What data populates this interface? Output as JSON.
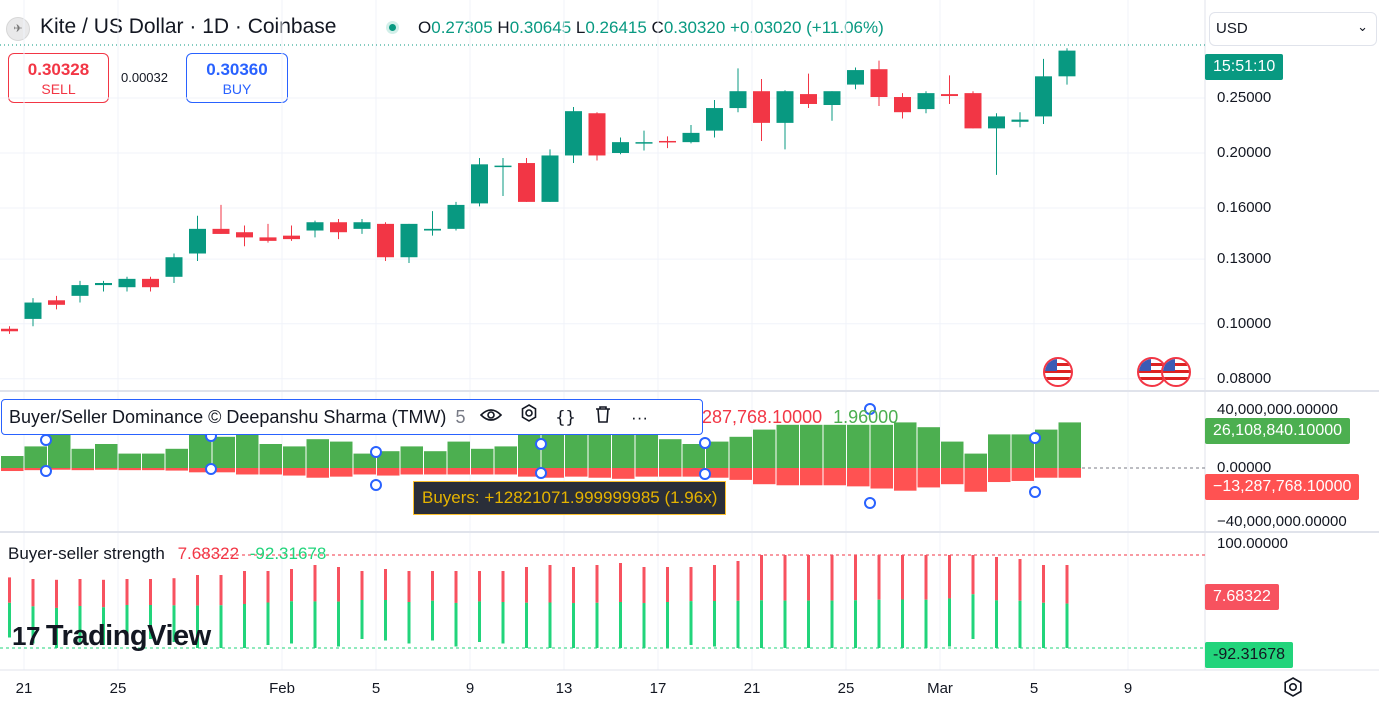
{
  "header": {
    "symbol_icon": "kite-logo-icon",
    "title": "Kite / US Dollar · 1D · Coinbase",
    "ohlc": {
      "o_label": "O",
      "o": "0.27305",
      "h_label": "H",
      "h": "0.30645",
      "l_label": "L",
      "l": "0.26415",
      "c_label": "C",
      "c": "0.30320",
      "change": "+0.03020 (+11.06%)"
    }
  },
  "trade": {
    "sell_price": "0.30328",
    "sell_label": "SELL",
    "spread": "0.00032",
    "buy_price": "0.30360",
    "buy_label": "BUY"
  },
  "currency_select": {
    "value": "USD"
  },
  "price_axis": {
    "labels": [
      "0.25000",
      "0.20000",
      "0.16000",
      "0.13000",
      "0.10000",
      "0.08000"
    ],
    "countdown": "15:51:10"
  },
  "dominance_indicator": {
    "name": "Buyer/Seller Dominance © Deepanshu Sharma (TMW)",
    "param": "5",
    "value_sell": "−13,287,768.10000",
    "value_sell_partial": "287,768.10000",
    "ratio": "1.96000",
    "axis": [
      "40,000,000.00000",
      "0.00000",
      "−40,000,000.00000"
    ],
    "tag_buy": "26,108,840.10000",
    "tag_sell": "−13,287,768.10000",
    "tooltip": "Buyers: +12821071.999999985 (1.96x)",
    "bars": [
      {
        "g": 0.25,
        "r": 0.14
      },
      {
        "g": 0.45,
        "r": 0.1
      },
      {
        "g": 0.7,
        "r": 0.08
      },
      {
        "g": 0.4,
        "r": 0.1
      },
      {
        "g": 0.5,
        "r": 0.08
      },
      {
        "g": 0.3,
        "r": 0.1
      },
      {
        "g": 0.3,
        "r": 0.1
      },
      {
        "g": 0.4,
        "r": 0.12
      },
      {
        "g": 0.7,
        "r": 0.2
      },
      {
        "g": 0.65,
        "r": 0.2
      },
      {
        "g": 0.7,
        "r": 0.3
      },
      {
        "g": 0.5,
        "r": 0.3
      },
      {
        "g": 0.45,
        "r": 0.35
      },
      {
        "g": 0.6,
        "r": 0.45
      },
      {
        "g": 0.55,
        "r": 0.4
      },
      {
        "g": 0.3,
        "r": 0.3
      },
      {
        "g": 0.35,
        "r": 0.35
      },
      {
        "g": 0.45,
        "r": 0.3
      },
      {
        "g": 0.35,
        "r": 0.3
      },
      {
        "g": 0.55,
        "r": 0.3
      },
      {
        "g": 0.4,
        "r": 0.3
      },
      {
        "g": 0.45,
        "r": 0.3
      },
      {
        "g": 0.7,
        "r": 0.4
      },
      {
        "g": 0.75,
        "r": 0.45
      },
      {
        "g": 0.75,
        "r": 0.4
      },
      {
        "g": 0.8,
        "r": 0.45
      },
      {
        "g": 0.75,
        "r": 0.5
      },
      {
        "g": 0.75,
        "r": 0.4
      },
      {
        "g": 0.6,
        "r": 0.4
      },
      {
        "g": 0.5,
        "r": 0.4
      },
      {
        "g": 0.55,
        "r": 0.45
      },
      {
        "g": 0.65,
        "r": 0.55
      },
      {
        "g": 0.8,
        "r": 0.75
      },
      {
        "g": 0.9,
        "r": 0.8
      },
      {
        "g": 0.9,
        "r": 0.8
      },
      {
        "g": 0.9,
        "r": 0.8
      },
      {
        "g": 0.9,
        "r": 0.85
      },
      {
        "g": 0.9,
        "r": 0.95
      },
      {
        "g": 0.95,
        "r": 1.05
      },
      {
        "g": 0.85,
        "r": 0.9
      },
      {
        "g": 0.55,
        "r": 0.75
      },
      {
        "g": 0.3,
        "r": 1.1
      },
      {
        "g": 0.7,
        "r": 0.65
      },
      {
        "g": 0.7,
        "r": 0.6
      },
      {
        "g": 0.8,
        "r": 0.45
      },
      {
        "g": 0.95,
        "r": 0.45
      }
    ]
  },
  "strength_indicator": {
    "name": "Buyer-seller strength",
    "value_pos": "7.68322",
    "value_neg": "-92.31678",
    "axis_top": "100.00000",
    "tag_pos": "7.68322",
    "tag_neg": "-92.31678"
  },
  "time_axis": {
    "labels": [
      {
        "t": "21",
        "x": 24
      },
      {
        "t": "25",
        "x": 118
      },
      {
        "t": "Feb",
        "x": 282
      },
      {
        "t": "5",
        "x": 376
      },
      {
        "t": "9",
        "x": 470
      },
      {
        "t": "13",
        "x": 564
      },
      {
        "t": "17",
        "x": 658
      },
      {
        "t": "21",
        "x": 752
      },
      {
        "t": "25",
        "x": 846
      },
      {
        "t": "Mar",
        "x": 940
      },
      {
        "t": "5",
        "x": 1034
      },
      {
        "t": "9",
        "x": 1128
      }
    ]
  },
  "branding": {
    "logo_text": "TradingView",
    "logo_mark": "17"
  },
  "colors": {
    "up": "#089981",
    "down": "#f23645",
    "vol_up": "#4caf50",
    "vol_down": "#ff5252",
    "strength_up": "#22d47b",
    "strength_down": "#f7525f"
  },
  "chart_data": {
    "type": "candlestick",
    "log_scale": true,
    "x": [
      "Jan 20",
      "Jan 21",
      "Jan 22",
      "Jan 23",
      "Jan 24",
      "Jan 25",
      "Jan 26",
      "Jan 27",
      "Jan 28",
      "Jan 29",
      "Jan 30",
      "Jan 31",
      "Feb 1",
      "Feb 2",
      "Feb 3",
      "Feb 4",
      "Feb 5",
      "Feb 6",
      "Feb 7",
      "Feb 8",
      "Feb 9",
      "Feb 10",
      "Feb 11",
      "Feb 12",
      "Feb 13",
      "Feb 14",
      "Feb 15",
      "Feb 16",
      "Feb 17",
      "Feb 18",
      "Feb 19",
      "Feb 20",
      "Feb 21",
      "Feb 22",
      "Feb 23",
      "Feb 24",
      "Feb 25",
      "Feb 26",
      "Feb 27",
      "Feb 28",
      "Mar 1",
      "Mar 2",
      "Mar 3",
      "Mar 4",
      "Mar 5",
      "Mar 6"
    ],
    "ohlc": [
      [
        0.098,
        0.099,
        0.096,
        0.097
      ],
      [
        0.102,
        0.111,
        0.099,
        0.109
      ],
      [
        0.11,
        0.112,
        0.106,
        0.108
      ],
      [
        0.112,
        0.119,
        0.109,
        0.117
      ],
      [
        0.117,
        0.119,
        0.114,
        0.118
      ],
      [
        0.116,
        0.121,
        0.114,
        0.12
      ],
      [
        0.12,
        0.121,
        0.114,
        0.116
      ],
      [
        0.121,
        0.133,
        0.118,
        0.131
      ],
      [
        0.133,
        0.155,
        0.129,
        0.147
      ],
      [
        0.147,
        0.162,
        0.144,
        0.144
      ],
      [
        0.145,
        0.149,
        0.137,
        0.142
      ],
      [
        0.142,
        0.15,
        0.139,
        0.14
      ],
      [
        0.143,
        0.149,
        0.14,
        0.141
      ],
      [
        0.146,
        0.152,
        0.142,
        0.151
      ],
      [
        0.151,
        0.153,
        0.141,
        0.145
      ],
      [
        0.147,
        0.153,
        0.144,
        0.151
      ],
      [
        0.15,
        0.151,
        0.129,
        0.131
      ],
      [
        0.131,
        0.15,
        0.128,
        0.15
      ],
      [
        0.146,
        0.158,
        0.143,
        0.147
      ],
      [
        0.147,
        0.164,
        0.146,
        0.162
      ],
      [
        0.163,
        0.196,
        0.161,
        0.191
      ],
      [
        0.19,
        0.196,
        0.168,
        0.19
      ],
      [
        0.192,
        0.196,
        0.164,
        0.164
      ],
      [
        0.164,
        0.203,
        0.164,
        0.198
      ],
      [
        0.198,
        0.241,
        0.192,
        0.237
      ],
      [
        0.235,
        0.236,
        0.194,
        0.198
      ],
      [
        0.2,
        0.213,
        0.199,
        0.209
      ],
      [
        0.209,
        0.219,
        0.202,
        0.209
      ],
      [
        0.21,
        0.214,
        0.204,
        0.209
      ],
      [
        0.209,
        0.224,
        0.208,
        0.217
      ],
      [
        0.219,
        0.248,
        0.213,
        0.24
      ],
      [
        0.24,
        0.282,
        0.236,
        0.257
      ],
      [
        0.257,
        0.27,
        0.21,
        0.226
      ],
      [
        0.226,
        0.258,
        0.203,
        0.257
      ],
      [
        0.254,
        0.276,
        0.24,
        0.244
      ],
      [
        0.243,
        0.257,
        0.228,
        0.257
      ],
      [
        0.264,
        0.283,
        0.259,
        0.28
      ],
      [
        0.281,
        0.291,
        0.242,
        0.251
      ],
      [
        0.251,
        0.255,
        0.23,
        0.236
      ],
      [
        0.239,
        0.257,
        0.235,
        0.255
      ],
      [
        0.254,
        0.274,
        0.244,
        0.252
      ],
      [
        0.255,
        0.257,
        0.221,
        0.221
      ],
      [
        0.221,
        0.235,
        0.183,
        0.232
      ],
      [
        0.227,
        0.236,
        0.222,
        0.229
      ],
      [
        0.232,
        0.293,
        0.225,
        0.273
      ],
      [
        0.273,
        0.306,
        0.264,
        0.303
      ]
    ],
    "yticks": [
      0.25,
      0.2,
      0.16,
      0.13,
      0.1,
      0.08
    ],
    "ylim": [
      0.078,
      0.31
    ],
    "grid": true
  }
}
